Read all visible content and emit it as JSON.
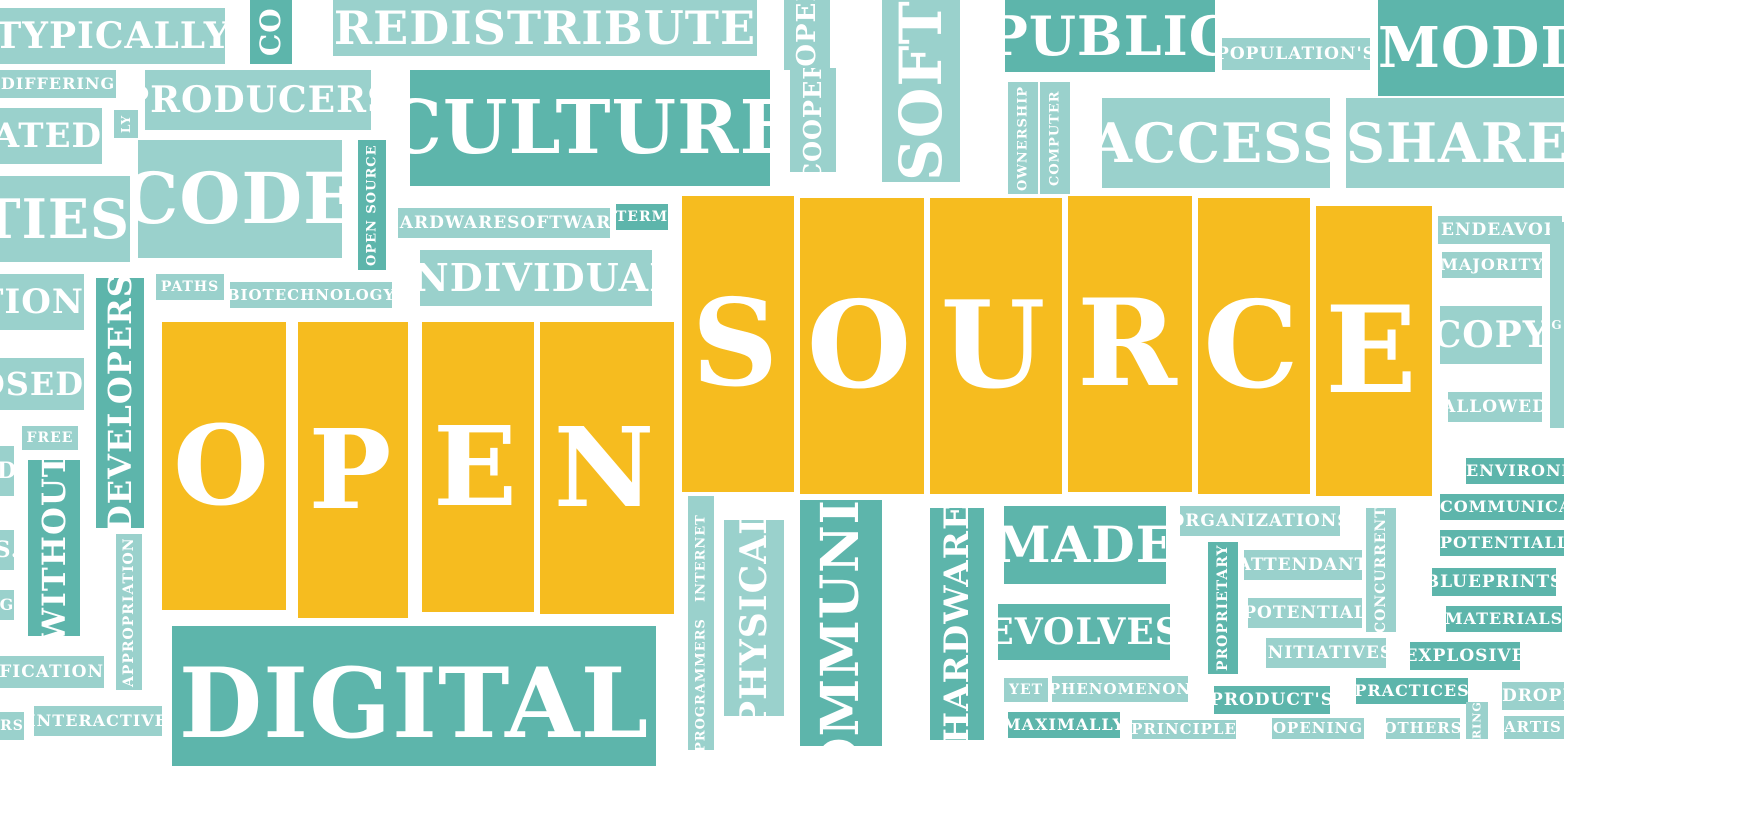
{
  "colors": {
    "background": "#ffffff",
    "teal_light": "#9ad1cc",
    "teal_dark": "#5db5ab",
    "gold": "#f6bc1f",
    "text": "#ffffff"
  },
  "words": {
    "typically": "TYPICALLY",
    "co": "CO",
    "redistribute": "REDISTRIBUTE",
    "coopera": "COOPERA",
    "soft": "SOFT",
    "public": "PUBLIC",
    "populations": "POPULATION'S",
    "modify": "MODIFY",
    "differing": "DIFFERING",
    "producers": "PRODUCERS",
    "cooper": "COOPER",
    "ownership": "OWNERSHIP",
    "computer": "COMPUTER",
    "ated": "ATED",
    "ly": "LY",
    "culture": "CULTURE",
    "access": "ACCESS",
    "shared": "SHARED",
    "ties": "TIES",
    "code": "CODE",
    "open_source_small": "OPEN SOURCE",
    "hardwaresoftware": "HARDWARESOFTWARE",
    "term": "TERM",
    "endeavor": "ENDEAVOR",
    "majority": "MAJORITY",
    "tion": "TION",
    "paths": "PATHS",
    "biotechnology": "BIOTECHNOLOGY",
    "individual": "INDIVIDUAL",
    "developers": "DEVELOPERS",
    "copy": "COPY",
    "osed": "OSED",
    "allowed": "ALLOWED",
    "free": "FREE",
    "without": "WITHOUT",
    "environm": "ENVIRONM",
    "communicat": "COMMUNICAT",
    "potentially": "POTENTIALLY",
    "blueprints": "BLUEPRINTS",
    "materials": "MATERIALS",
    "explosive": "EXPLOSIVE",
    "dropp": "DROPP",
    "internet": "INTERNET",
    "physical": "PHYSICAL",
    "community": "COMMUNITY",
    "hardware": "HARDWARE",
    "made": "MADE",
    "organizations": "ORGANIZATIONS",
    "attendant": "ATTENDANT",
    "concurrent": "CONCURRENT",
    "proprietary": "PROPRIETARY",
    "potential": "POTENTIAL",
    "evolves": "EVOLVES",
    "initiatives": "INITIATIVES",
    "appropriation": "APPROPRIATION",
    "ification": "IFICATION",
    "interactive": "INTERACTIVE",
    "digital": "DIGITAL",
    "programmers": "PROGRAMMERS",
    "yet": "YET",
    "phenomenon": "PHENOMENON",
    "products": "PRODUCT'S",
    "practices": "PRACTICES",
    "maximally": "MAXIMALLY",
    "principle": "PRINCIPLE",
    "opening": "OPENING",
    "others": "OTHERS",
    "ring": "RING",
    "artis": "ARTIS",
    "rs": "RS",
    "s_frag": "S.",
    "d_frag": "D",
    "g_frag": "G",
    "open_letters": [
      "O",
      "P",
      "E",
      "N"
    ],
    "source_letters": [
      "S",
      "O",
      "U",
      "R",
      "C",
      "E"
    ]
  }
}
